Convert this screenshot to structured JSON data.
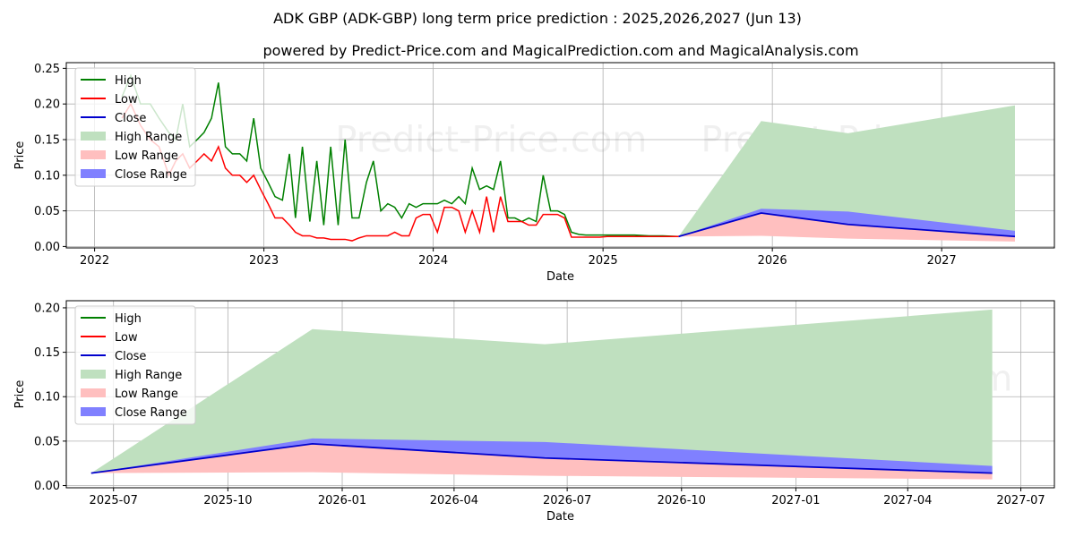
{
  "title": "ADK GBP (ADK-GBP) long term price prediction : 2025,2026,2027 (Jun 13)",
  "subtitle": "powered by Predict-Price.com and MagicalPrediction.com and MagicalAnalysis.com",
  "watermark": "Predict-Price.com",
  "colors": {
    "high": "#008000",
    "low": "#ff0000",
    "close": "#0000cd",
    "high_range": "#bfe0bf",
    "low_range": "#ffbfbf",
    "close_range": "#8080ff",
    "grid": "#b0b0b0"
  },
  "legend": {
    "high": "High",
    "low": "Low",
    "close": "Close",
    "high_range": "High Range",
    "low_range": "Low Range",
    "close_range": "Close Range"
  },
  "chart_data": [
    {
      "type": "line",
      "xlabel": "Date",
      "ylabel": "Price",
      "xlim": [
        "2021-11-01",
        "2027-09-01"
      ],
      "ylim": [
        -0.002,
        0.258
      ],
      "xticks": [
        "2022-01-01",
        "2023-01-01",
        "2024-01-01",
        "2025-01-01",
        "2026-01-01",
        "2027-01-01"
      ],
      "xticklabels": [
        "2022",
        "2023",
        "2024",
        "2025",
        "2026",
        "2027"
      ],
      "yticks": [
        0.0,
        0.05,
        0.1,
        0.15,
        0.2,
        0.25
      ],
      "yticklabels": [
        "0.00",
        "0.05",
        "0.10",
        "0.15",
        "0.20",
        "0.25"
      ],
      "grid": true,
      "legend_position": "upper-left",
      "history": {
        "dates": [
          "2022-03-01",
          "2022-03-20",
          "2022-04-10",
          "2022-05-01",
          "2022-05-20",
          "2022-06-10",
          "2022-06-25",
          "2022-07-10",
          "2022-07-25",
          "2022-08-10",
          "2022-08-25",
          "2022-09-10",
          "2022-09-25",
          "2022-10-10",
          "2022-10-25",
          "2022-11-10",
          "2022-11-25",
          "2022-12-10",
          "2022-12-25",
          "2023-01-10",
          "2023-01-25",
          "2023-02-10",
          "2023-02-25",
          "2023-03-10",
          "2023-03-25",
          "2023-04-10",
          "2023-04-25",
          "2023-05-10",
          "2023-05-25",
          "2023-06-10",
          "2023-06-25",
          "2023-07-10",
          "2023-07-25",
          "2023-08-10",
          "2023-08-25",
          "2023-09-10",
          "2023-09-25",
          "2023-10-10",
          "2023-10-25",
          "2023-11-10",
          "2023-11-25",
          "2023-12-10",
          "2023-12-25",
          "2024-01-10",
          "2024-01-25",
          "2024-02-10",
          "2024-02-25",
          "2024-03-10",
          "2024-03-25",
          "2024-04-10",
          "2024-04-25",
          "2024-05-10",
          "2024-05-25",
          "2024-06-10",
          "2024-06-25",
          "2024-07-10",
          "2024-07-25",
          "2024-08-10",
          "2024-08-25",
          "2024-09-10",
          "2024-09-25",
          "2024-10-10",
          "2024-10-25",
          "2024-11-10",
          "2024-11-25",
          "2024-12-10",
          "2024-12-25",
          "2025-01-10",
          "2025-02-10",
          "2025-03-10",
          "2025-04-10",
          "2025-05-10",
          "2025-06-13"
        ],
        "high": [
          0.21,
          0.24,
          0.2,
          0.2,
          0.18,
          0.16,
          0.15,
          0.2,
          0.14,
          0.15,
          0.16,
          0.18,
          0.23,
          0.14,
          0.13,
          0.13,
          0.12,
          0.18,
          0.11,
          0.09,
          0.07,
          0.065,
          0.13,
          0.04,
          0.14,
          0.035,
          0.12,
          0.03,
          0.14,
          0.03,
          0.15,
          0.04,
          0.04,
          0.09,
          0.12,
          0.05,
          0.06,
          0.055,
          0.04,
          0.06,
          0.055,
          0.06,
          0.06,
          0.06,
          0.065,
          0.06,
          0.07,
          0.06,
          0.11,
          0.08,
          0.085,
          0.08,
          0.12,
          0.04,
          0.04,
          0.035,
          0.04,
          0.035,
          0.1,
          0.05,
          0.05,
          0.045,
          0.02,
          0.017,
          0.016,
          0.016,
          0.016,
          0.016,
          0.016,
          0.016,
          0.015,
          0.015,
          0.014
        ],
        "low": [
          0.18,
          0.2,
          0.17,
          0.15,
          0.14,
          0.1,
          0.12,
          0.13,
          0.11,
          0.12,
          0.13,
          0.12,
          0.14,
          0.11,
          0.1,
          0.1,
          0.09,
          0.1,
          0.08,
          0.06,
          0.04,
          0.04,
          0.03,
          0.02,
          0.015,
          0.015,
          0.012,
          0.012,
          0.01,
          0.01,
          0.01,
          0.008,
          0.012,
          0.015,
          0.015,
          0.015,
          0.015,
          0.02,
          0.015,
          0.015,
          0.04,
          0.045,
          0.045,
          0.02,
          0.055,
          0.055,
          0.05,
          0.02,
          0.05,
          0.02,
          0.07,
          0.02,
          0.07,
          0.035,
          0.035,
          0.035,
          0.03,
          0.03,
          0.045,
          0.045,
          0.045,
          0.04,
          0.013,
          0.013,
          0.013,
          0.013,
          0.013,
          0.014,
          0.014,
          0.014,
          0.014,
          0.014,
          0.014
        ]
      },
      "forecast": {
        "dates": [
          "2025-06-13",
          "2025-12-08",
          "2026-06-13",
          "2027-06-08"
        ],
        "close": [
          0.014,
          0.047,
          0.031,
          0.014
        ],
        "close_upper": [
          0.014,
          0.053,
          0.049,
          0.022
        ],
        "high_upper": [
          0.014,
          0.176,
          0.159,
          0.198
        ],
        "low_lower": [
          0.014,
          0.015,
          0.011,
          0.007
        ]
      }
    },
    {
      "type": "line",
      "xlabel": "Date",
      "ylabel": "Price",
      "xlim": [
        "2025-05-24",
        "2027-07-28"
      ],
      "ylim": [
        -0.0025,
        0.208
      ],
      "xticks": [
        "2025-07-01",
        "2025-10-01",
        "2026-01-01",
        "2026-04-01",
        "2026-07-01",
        "2026-10-01",
        "2027-01-01",
        "2027-04-01",
        "2027-07-01"
      ],
      "xticklabels": [
        "2025-07",
        "2025-10",
        "2026-01",
        "2026-04",
        "2026-07",
        "2026-10",
        "2027-01",
        "2027-04",
        "2027-07"
      ],
      "yticks": [
        0.0,
        0.05,
        0.1,
        0.15,
        0.2
      ],
      "yticklabels": [
        "0.00",
        "0.05",
        "0.10",
        "0.15",
        "0.20"
      ],
      "grid": true,
      "legend_position": "upper-left",
      "forecast": {
        "dates": [
          "2025-06-13",
          "2025-12-08",
          "2026-06-13",
          "2027-06-08"
        ],
        "close": [
          0.014,
          0.047,
          0.031,
          0.014
        ],
        "close_upper": [
          0.014,
          0.053,
          0.049,
          0.022
        ],
        "high_upper": [
          0.014,
          0.176,
          0.159,
          0.198
        ],
        "low_lower": [
          0.014,
          0.015,
          0.011,
          0.007
        ]
      }
    }
  ]
}
